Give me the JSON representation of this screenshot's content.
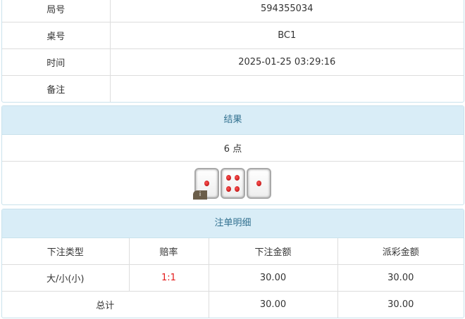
{
  "info": {
    "rows": [
      {
        "label": "局号",
        "value": "594355034"
      },
      {
        "label": "桌号",
        "value": "BC1"
      },
      {
        "label": "时间",
        "value": "2025-01-25 03:29:16"
      },
      {
        "label": "备注",
        "value": ""
      }
    ]
  },
  "result": {
    "title": "结果",
    "points": "6 点",
    "dice": [
      1,
      4,
      1
    ],
    "info_badge": "i"
  },
  "bets": {
    "title": "注单明细",
    "columns": [
      "下注类型",
      "赔率",
      "下注金额",
      "派彩金额"
    ],
    "rows": [
      {
        "type": "大/小(小)",
        "odds": "1:1",
        "amount": "30.00",
        "payout": "30.00"
      }
    ],
    "total": {
      "label": "总计",
      "amount": "30.00",
      "payout": "30.00"
    }
  },
  "colors": {
    "header_bg": "#d9edf7",
    "header_text": "#31708f",
    "odds": "#e31b1b"
  }
}
